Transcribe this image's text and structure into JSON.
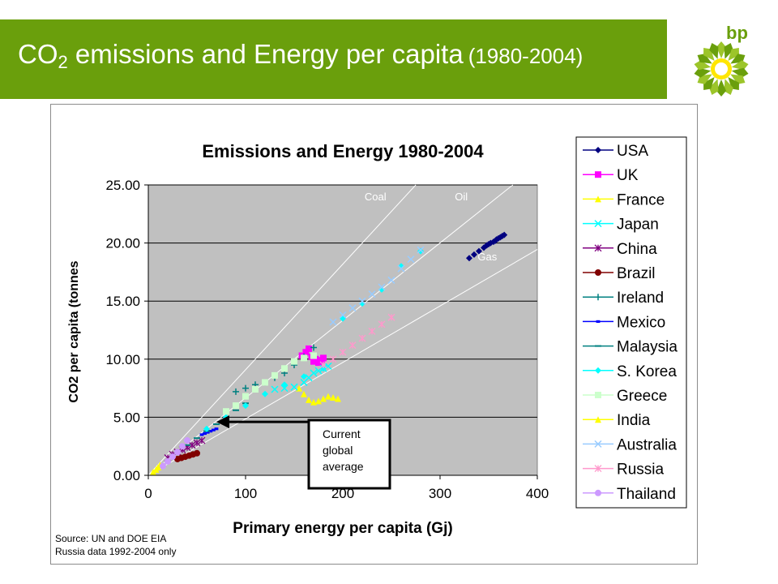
{
  "slide": {
    "title_main": "CO",
    "title_sub": "2",
    "title_rest": " emissions and Energy per capita",
    "title_years": "(1980-2004)",
    "logo_text": "bp",
    "source_line1": "Source: UN and DOE EIA",
    "source_line2": "Russia data 1992-2004 only",
    "callout_lines": [
      "Current",
      "global",
      "average"
    ]
  },
  "colors": {
    "title_bar": "#6a9f0c",
    "plot_bg": "#c0c0c0",
    "ref_lines": "#ffffff"
  },
  "chart_data": {
    "type": "scatter",
    "title": "Emissions  and Energy 1980-2004",
    "xlabel": "Primary energy per capita (Gj)",
    "ylabel": "CO2 per capita (tonnes",
    "xlim": [
      0,
      400
    ],
    "ylim": [
      0,
      25
    ],
    "x_ticks": [
      "0",
      "100",
      "200",
      "300",
      "400"
    ],
    "y_ticks": [
      "0.00",
      "5.00",
      "10.00",
      "15.00",
      "20.00",
      "25.00"
    ],
    "grid": "horizontal",
    "legend_position": "right",
    "reference_lines": [
      {
        "label": "Coal",
        "slope": 0.0909
      },
      {
        "label": "Oil",
        "slope": 0.0667
      },
      {
        "label": "Gas",
        "slope": 0.0486
      }
    ],
    "current_global_average": {
      "x": 70,
      "y": 4.6
    },
    "series": [
      {
        "name": "USA",
        "color": "#000080",
        "marker": "diamond",
        "x": [
          330,
          335,
          340,
          345,
          348,
          350,
          352,
          355,
          357,
          358,
          360,
          362,
          364,
          366
        ],
        "y": [
          18.7,
          19.0,
          19.3,
          19.6,
          19.8,
          19.9,
          20.0,
          20.1,
          20.2,
          20.3,
          20.4,
          20.5,
          20.6,
          20.7
        ]
      },
      {
        "name": "UK",
        "color": "#ff00ff",
        "marker": "square",
        "x": [
          158,
          162,
          165,
          168,
          170,
          172,
          175,
          178,
          180
        ],
        "y": [
          10.3,
          10.6,
          10.9,
          10.2,
          9.8,
          10.0,
          9.7,
          9.9,
          10.1
        ]
      },
      {
        "name": "France",
        "color": "#ffff00",
        "marker": "triangle",
        "x": [
          155,
          160,
          165,
          170,
          175,
          180,
          185,
          190,
          195
        ],
        "y": [
          7.5,
          7.0,
          6.5,
          6.3,
          6.4,
          6.6,
          6.8,
          6.7,
          6.6
        ]
      },
      {
        "name": "Japan",
        "color": "#00ffff",
        "marker": "x",
        "x": [
          130,
          140,
          150,
          160,
          165,
          170,
          175,
          180,
          185
        ],
        "y": [
          7.4,
          7.5,
          7.6,
          8.0,
          8.4,
          8.8,
          9.0,
          9.2,
          9.4
        ]
      },
      {
        "name": "China",
        "color": "#800080",
        "marker": "star",
        "x": [
          20,
          25,
          30,
          35,
          40,
          45,
          50,
          55
        ],
        "y": [
          1.5,
          1.8,
          2.0,
          2.2,
          2.4,
          2.6,
          2.8,
          3.0
        ]
      },
      {
        "name": "Brazil",
        "color": "#800000",
        "marker": "circle",
        "x": [
          30,
          34,
          38,
          42,
          46,
          50
        ],
        "y": [
          1.4,
          1.5,
          1.6,
          1.7,
          1.8,
          1.9
        ]
      },
      {
        "name": "Ireland",
        "color": "#008080",
        "marker": "plus",
        "x": [
          90,
          100,
          110,
          120,
          130,
          140,
          150,
          160,
          170
        ],
        "y": [
          7.2,
          7.5,
          7.8,
          8.0,
          8.4,
          8.8,
          9.5,
          10.2,
          11.0
        ]
      },
      {
        "name": "Mexico",
        "color": "#0000ff",
        "marker": "dash",
        "x": [
          55,
          58,
          61,
          64,
          67,
          70
        ],
        "y": [
          3.5,
          3.6,
          3.7,
          3.8,
          3.9,
          4.0
        ]
      },
      {
        "name": "Malaysia",
        "color": "#008080",
        "marker": "hline",
        "x": [
          30,
          40,
          50,
          60,
          70,
          80,
          90,
          100
        ],
        "y": [
          2.0,
          2.6,
          3.2,
          3.8,
          4.4,
          5.0,
          5.6,
          6.2
        ]
      },
      {
        "name": "S. Korea",
        "color": "#00ffff",
        "marker": "diamond",
        "x": [
          40,
          60,
          80,
          100,
          120,
          140,
          160,
          180,
          200,
          220,
          240,
          260,
          280
        ],
        "y": [
          3.0,
          4.0,
          5.0,
          6.0,
          7.0,
          7.8,
          8.5,
          9.2,
          13.5,
          14.8,
          16.0,
          18.0,
          19.3
        ]
      },
      {
        "name": "Greece",
        "color": "#ccffcc",
        "marker": "square",
        "x": [
          80,
          90,
          100,
          110,
          120,
          130,
          140,
          150,
          160,
          170
        ],
        "y": [
          5.5,
          6.0,
          6.8,
          7.4,
          8.0,
          8.6,
          9.2,
          9.8,
          10.1,
          10.3
        ]
      },
      {
        "name": "India",
        "color": "#ffff00",
        "marker": "triangle",
        "x": [
          5,
          8,
          10,
          12
        ],
        "y": [
          0.3,
          0.5,
          0.7,
          0.9
        ]
      },
      {
        "name": "Australia",
        "color": "#99ccff",
        "marker": "x",
        "x": [
          190,
          200,
          210,
          220,
          230,
          240,
          250,
          260,
          270,
          280
        ],
        "y": [
          13.2,
          13.8,
          14.4,
          15.0,
          15.6,
          16.2,
          16.8,
          17.8,
          18.6,
          19.4
        ]
      },
      {
        "name": "Russia",
        "color": "#ff99cc",
        "marker": "star",
        "x": [
          180,
          190,
          200,
          210,
          220,
          230,
          240,
          250
        ],
        "y": [
          9.5,
          10.0,
          10.6,
          11.2,
          11.8,
          12.4,
          13.0,
          13.6
        ]
      },
      {
        "name": "Thailand",
        "color": "#cc99ff",
        "marker": "circle",
        "x": [
          15,
          20,
          25,
          30,
          35,
          40
        ],
        "y": [
          0.8,
          1.2,
          1.6,
          2.0,
          2.5,
          3.0
        ]
      }
    ]
  }
}
